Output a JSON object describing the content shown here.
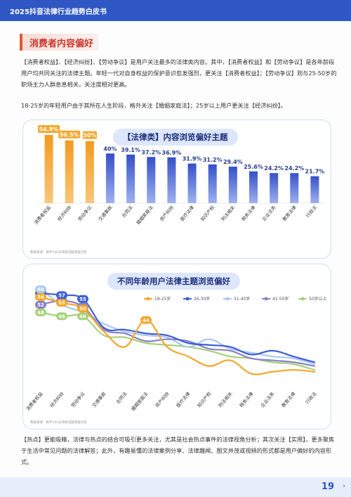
{
  "header": {
    "title": "2025抖音法律行业趋势白皮书"
  },
  "section": {
    "title": "消费者内容偏好"
  },
  "paragraphs": {
    "p1": "【消费者权益】、【经济纠纷】、【劳动争议】是用户关注最多的法律类内容。其中，【消费者权益】和【劳动争议】是各年龄段用户均共同关注的法律主题。年轻一代对自身权益的保护意识愈发强烈，更关注【消费者权益】；【劳动争议】则与25-50岁的职场主力人群息息相关，关注度相对更高。",
    "p2": "18-25岁的年轻用户由于其所在人生阶段，格外关注【婚姻家庭法】；25岁以上用户更关注【经济纠纷】。",
    "p3": "【热点】更能吸睛，法律与热点的结合可吸引更多关注，尤其是社会热点事件的法律视角分析；其次关注【实用】，更多聚焦于生活中常见问题的法律解答；此外，有趣易懂的法律案例分享、法律趣闻、图文并茂或视频的形式都是用户偏好的内容形式。"
  },
  "colors": {
    "accent_orange": "#f4a62a",
    "accent_blue": "#3e5fd3",
    "header_blue": "#2f57c4"
  },
  "chart_data": [
    {
      "type": "bar",
      "title": "【法律类】内容浏览偏好主题",
      "categories": [
        "消费者权益",
        "经济纠纷",
        "劳动争议",
        "交通事故",
        "合同法",
        "婚姻家庭法",
        "房产纠纷",
        "医疗法律",
        "知识产权",
        "刑法相关",
        "税务法律",
        "企业法务",
        "教育法律",
        "行政法"
      ],
      "values": [
        54.9,
        50.5,
        50.0,
        40.0,
        39.1,
        37.2,
        36.9,
        31.9,
        31.2,
        29.4,
        25.6,
        24.2,
        24.2,
        21.7
      ],
      "labels": [
        "54.9%",
        "50.5%",
        "50%",
        "40%",
        "39.1%",
        "37.2%",
        "36.9%",
        "31.9%",
        "31.2%",
        "29.4%",
        "25.6%",
        "24.2%",
        "24.2%",
        "21.7%"
      ],
      "highlight_count": 3,
      "ylim": [
        0,
        60
      ],
      "source": "数据来源：数字100法律类话题调查问卷"
    },
    {
      "type": "line",
      "title": "不同年龄用户法律主题浏览偏好",
      "categories": [
        "消费者权益",
        "经济纠纷",
        "劳动争议",
        "交通事故",
        "合同法",
        "婚姻家庭法",
        "房产纠纷",
        "医疗法律",
        "知识产权",
        "刑法相关",
        "税务法律",
        "企业法务",
        "教育法律",
        "行政法"
      ],
      "ylim": [
        10,
        65
      ],
      "series": [
        {
          "name": "18-25岁",
          "color": "#f4a62a",
          "values": [
            56,
            53,
            50,
            38,
            30,
            44,
            30,
            25,
            20,
            23,
            16,
            17,
            18,
            17
          ]
        },
        {
          "name": "26-30岁",
          "color": "#3e5fd3",
          "values": [
            58,
            57,
            55,
            40,
            39,
            37,
            36,
            32,
            31,
            30,
            26,
            28,
            25,
            22
          ]
        },
        {
          "name": "31-40岁",
          "color": "#a9c9ee",
          "values": [
            60,
            52,
            48,
            42,
            38,
            36,
            35,
            30,
            34,
            29,
            27,
            25,
            24,
            21
          ]
        },
        {
          "name": "41-50岁",
          "color": "#8a80c8",
          "values": [
            52,
            54,
            51,
            39,
            37,
            33,
            34,
            33,
            29,
            28,
            24,
            23,
            22,
            20
          ]
        },
        {
          "name": "50岁以上",
          "color": "#a8d07a",
          "values": [
            48,
            46,
            46,
            36,
            35,
            32,
            31,
            30,
            28,
            25,
            24,
            22,
            21,
            18
          ]
        }
      ],
      "callouts": [
        {
          "series": 4,
          "index": 0,
          "label": "48"
        },
        {
          "series": 4,
          "index": 1,
          "label": "46"
        },
        {
          "series": 4,
          "index": 2,
          "label": "46"
        },
        {
          "series": 3,
          "index": 0,
          "label": "52"
        },
        {
          "series": 3,
          "index": 1,
          "label": "54"
        },
        {
          "series": 3,
          "index": 2,
          "label": "51"
        },
        {
          "series": 1,
          "index": 0,
          "label": "58"
        },
        {
          "series": 1,
          "index": 1,
          "label": "57"
        },
        {
          "series": 1,
          "index": 2,
          "label": "55"
        },
        {
          "series": 2,
          "index": 0,
          "label": "60"
        },
        {
          "series": 0,
          "index": 0,
          "label": "56"
        },
        {
          "series": 0,
          "index": 1,
          "label": "53"
        },
        {
          "series": 0,
          "index": 2,
          "label": "50"
        },
        {
          "series": 0,
          "index": 5,
          "label": "44"
        }
      ],
      "source": "数据来源：数字100法律类话题调查问卷"
    }
  ],
  "footer": {
    "page": "19",
    "chevron": "›"
  }
}
